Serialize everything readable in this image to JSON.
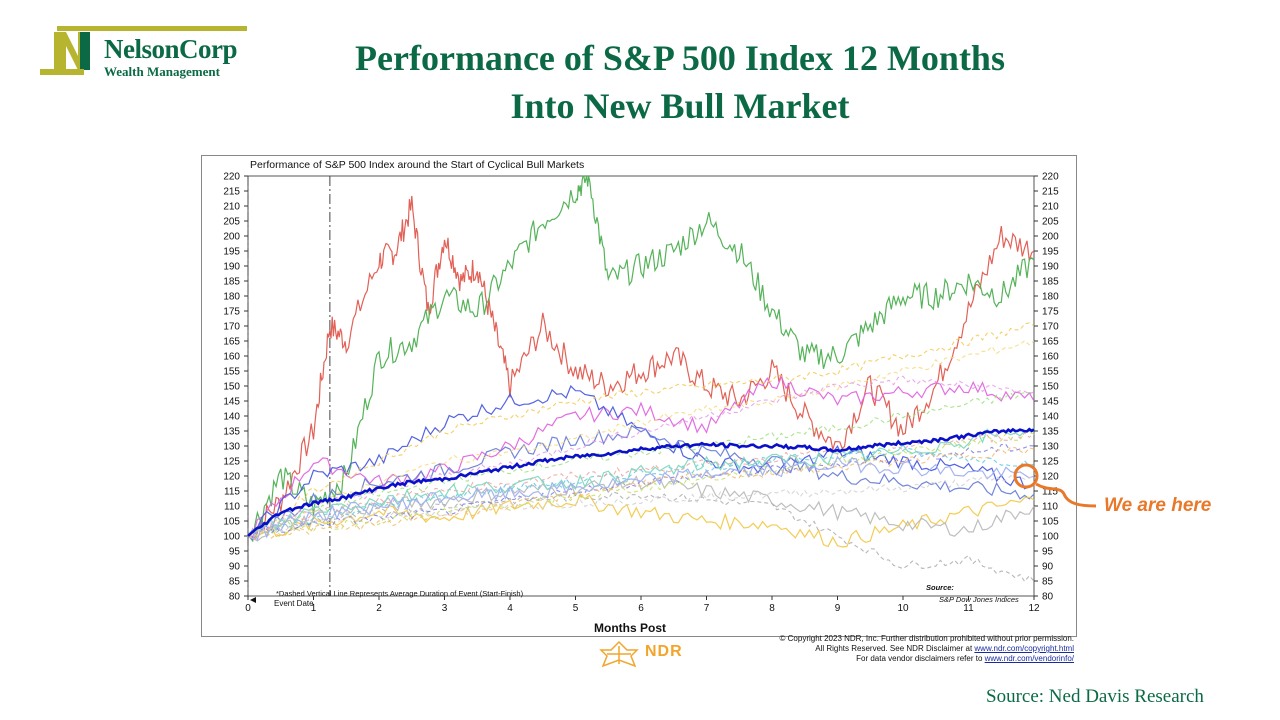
{
  "logo": {
    "brand": "NelsonCorp",
    "subtitle": "Wealth Management"
  },
  "title": {
    "line1": "Performance of S&P 500 Index 12 Months",
    "line2": "Into New Bull Market"
  },
  "annotation": "We are here",
  "source_footer": "Source:  Ned Davis  Research",
  "copyright": {
    "line1": "© Copyright 2023 NDR, Inc. Further distribution prohibited without prior permission.",
    "line2": "All Rights Reserved. See NDR Disclaimer at ",
    "line2_link": "www.ndr.com/copyright.html",
    "line3": "For data vendor disclaimers refer to ",
    "line3_link": "www.ndr.com/vendorinfo/"
  },
  "ndr_logo": "NDR",
  "colors": {
    "brand_green": "#0b6a45",
    "logo_olive": "#b7b530",
    "annotation_orange": "#e8782a",
    "average_line": "#0a10c8"
  },
  "chart_data": {
    "type": "line",
    "title": "Performance of S&P 500 Index around the Start of Cyclical Bull Markets",
    "xlabel": "Months Post",
    "ylabel": "",
    "xlim": [
      0,
      12
    ],
    "ylim": [
      80,
      220
    ],
    "x_ticks": [
      0,
      1,
      2,
      3,
      4,
      5,
      6,
      7,
      8,
      9,
      10,
      11,
      12
    ],
    "y_ticks": [
      80,
      85,
      90,
      95,
      100,
      105,
      110,
      115,
      120,
      125,
      130,
      135,
      140,
      145,
      150,
      155,
      160,
      165,
      170,
      175,
      180,
      185,
      190,
      195,
      200,
      205,
      210,
      215,
      220
    ],
    "grid": false,
    "legend": "none",
    "notes": {
      "dashed_line": "*Dashed Vertical Line Represents Average Duration of Event (Start-Finish)",
      "event_date": "Event Date",
      "source_label": "Source:",
      "source_name": "S&P Dow Jones Indices"
    },
    "vertical_lines": [
      0,
      1.25
    ],
    "highlight": {
      "x": 12,
      "y": 118,
      "label": "We are here"
    },
    "average": {
      "name": "Average",
      "x": [
        0,
        0.5,
        1,
        1.5,
        2,
        2.5,
        3,
        3.5,
        4,
        4.5,
        5,
        5.5,
        6,
        6.5,
        7,
        7.5,
        8,
        8.5,
        9,
        9.5,
        10,
        10.5,
        11,
        11.5,
        12
      ],
      "values": [
        100,
        108,
        111,
        113,
        116,
        118,
        119,
        121,
        123,
        125,
        126.5,
        127.5,
        129,
        130,
        130.5,
        130,
        130,
        129.5,
        128.5,
        130,
        131,
        132,
        133.5,
        135,
        135.5
      ]
    },
    "series": [
      {
        "color": "#e0594e",
        "dash": false,
        "x": [
          0,
          0.5,
          1,
          1.25,
          1.5,
          2,
          2.25,
          2.5,
          2.75,
          3,
          3.25,
          3.5,
          3.75,
          4,
          4.5,
          5,
          5.5,
          6,
          6.5,
          7,
          7.5,
          8,
          8.5,
          9,
          9.5,
          10,
          10.5,
          11,
          11.5,
          12
        ],
        "values": [
          100,
          112,
          135,
          170,
          165,
          192,
          195,
          210,
          175,
          200,
          185,
          190,
          170,
          150,
          170,
          155,
          150,
          155,
          160,
          150,
          145,
          155,
          140,
          130,
          150,
          135,
          150,
          175,
          200,
          195
        ]
      },
      {
        "color": "#4caf50",
        "dash": false,
        "x": [
          0,
          0.5,
          1,
          1.5,
          2,
          2.5,
          3,
          3.5,
          4,
          4.5,
          5,
          5.2,
          5.5,
          6,
          6.5,
          7,
          7.5,
          8,
          8.5,
          9,
          9.5,
          10,
          10.5,
          11,
          11.5,
          12
        ],
        "values": [
          100,
          120,
          110,
          120,
          160,
          165,
          180,
          175,
          190,
          205,
          215,
          220,
          185,
          190,
          195,
          205,
          195,
          175,
          160,
          160,
          170,
          180,
          180,
          185,
          180,
          192
        ]
      },
      {
        "color": "#e066e0",
        "dash": false,
        "x": [
          0,
          1,
          2,
          3,
          4,
          5,
          6,
          7,
          8,
          9,
          10,
          11,
          12
        ],
        "values": [
          100,
          125,
          118,
          122,
          130,
          140,
          142,
          136,
          152,
          145,
          148,
          150,
          145
        ]
      },
      {
        "color": "#4a5be0",
        "dash": false,
        "x": [
          0,
          1,
          2,
          3,
          4,
          5,
          6,
          7,
          8,
          9,
          10,
          11,
          12
        ],
        "values": [
          100,
          120,
          125,
          138,
          145,
          148,
          135,
          125,
          122,
          128,
          125,
          122,
          117
        ]
      },
      {
        "color": "#6a7ed8",
        "dash": false,
        "x": [
          0,
          1,
          2,
          3,
          4,
          5,
          6,
          7,
          8,
          9,
          10,
          11,
          12
        ],
        "values": [
          100,
          112,
          118,
          122,
          128,
          132,
          135,
          128,
          125,
          120,
          118,
          116,
          114
        ]
      },
      {
        "color": "#f2c94c",
        "dash": false,
        "x": [
          0,
          1,
          2,
          3,
          4,
          5,
          6,
          7,
          8,
          9,
          10,
          11,
          12
        ],
        "values": [
          100,
          104,
          108,
          106,
          110,
          112,
          108,
          105,
          104,
          98,
          103,
          108,
          112
        ]
      },
      {
        "color": "#bbbbbb",
        "dash": false,
        "x": [
          0,
          1,
          2,
          3,
          4,
          5,
          6,
          7,
          8,
          9,
          10,
          11,
          12
        ],
        "values": [
          100,
          106,
          110,
          112,
          115,
          116,
          118,
          115,
          112,
          108,
          104,
          102,
          110
        ]
      },
      {
        "color": "#aaaaaa",
        "dash": true,
        "x": [
          0,
          1,
          2,
          3,
          4,
          5,
          6,
          7,
          8,
          9,
          10,
          11,
          12
        ],
        "values": [
          100,
          105,
          108,
          110,
          112,
          113,
          114,
          112,
          110,
          100,
          90,
          92,
          85
        ]
      },
      {
        "color": "#f2c94c",
        "dash": true,
        "x": [
          0,
          1,
          2,
          3,
          4,
          5,
          6,
          7,
          8,
          9,
          10,
          11,
          12
        ],
        "values": [
          100,
          115,
          125,
          135,
          140,
          145,
          148,
          150,
          152,
          155,
          160,
          165,
          170
        ]
      },
      {
        "color": "#f5d97a",
        "dash": true,
        "x": [
          0,
          1,
          2,
          3,
          4,
          5,
          6,
          7,
          8,
          9,
          10,
          11,
          12
        ],
        "values": [
          100,
          110,
          118,
          125,
          128,
          132,
          138,
          142,
          145,
          150,
          155,
          160,
          165
        ]
      },
      {
        "color": "#9ae07a",
        "dash": true,
        "x": [
          0,
          1,
          2,
          3,
          4,
          5,
          6,
          7,
          8,
          9,
          10,
          11,
          12
        ],
        "values": [
          100,
          108,
          114,
          118,
          122,
          125,
          128,
          130,
          133,
          136,
          140,
          144,
          148
        ]
      },
      {
        "color": "#5bc8e0",
        "dash": true,
        "x": [
          0,
          1,
          2,
          3,
          4,
          5,
          6,
          7,
          8,
          9,
          10,
          11,
          12
        ],
        "values": [
          100,
          106,
          110,
          113,
          116,
          118,
          121,
          123,
          125,
          127,
          128,
          126,
          124
        ]
      },
      {
        "color": "#e69ae6",
        "dash": true,
        "x": [
          0,
          1,
          2,
          3,
          4,
          5,
          6,
          7,
          8,
          9,
          10,
          11,
          12
        ],
        "values": [
          100,
          110,
          115,
          120,
          124,
          130,
          135,
          140,
          145,
          150,
          152,
          150,
          148
        ]
      },
      {
        "color": "#7b7be0",
        "dash": true,
        "x": [
          0,
          1,
          2,
          3,
          4,
          5,
          6,
          7,
          8,
          9,
          10,
          11,
          12
        ],
        "values": [
          100,
          104,
          106,
          108,
          112,
          115,
          118,
          120,
          122,
          124,
          126,
          128,
          130
        ]
      },
      {
        "color": "#f0a0a0",
        "dash": true,
        "x": [
          0,
          1,
          2,
          3,
          4,
          5,
          6,
          7,
          8,
          9,
          10,
          11,
          12
        ],
        "values": [
          100,
          108,
          112,
          115,
          118,
          120,
          122,
          124,
          126,
          128,
          130,
          132,
          134
        ]
      },
      {
        "color": "#c0e060",
        "dash": true,
        "x": [
          0,
          1,
          2,
          3,
          4,
          5,
          6,
          7,
          8,
          9,
          10,
          11,
          12
        ],
        "values": [
          100,
          103,
          105,
          108,
          110,
          113,
          116,
          119,
          122,
          125,
          128,
          131,
          134
        ]
      },
      {
        "color": "#f5b86a",
        "dash": true,
        "x": [
          0,
          1,
          2,
          3,
          4,
          5,
          6,
          7,
          8,
          9,
          10,
          11,
          12
        ],
        "values": [
          100,
          102,
          104,
          107,
          110,
          114,
          118,
          120,
          121,
          123,
          125,
          127,
          129
        ]
      },
      {
        "color": "#80d8c0",
        "dash": false,
        "x": [
          0,
          1,
          2,
          3,
          4,
          5,
          6,
          7,
          8,
          9,
          10,
          11,
          12
        ],
        "values": [
          100,
          109,
          112,
          115,
          117,
          118,
          121,
          124,
          125,
          126,
          128,
          132,
          136
        ]
      },
      {
        "color": "#a0b0f0",
        "dash": false,
        "x": [
          0,
          1,
          2,
          3,
          4,
          5,
          6,
          7,
          8,
          9,
          10,
          11,
          12
        ],
        "values": [
          100,
          107,
          110,
          113,
          114,
          116,
          118,
          121,
          122,
          124,
          123,
          121,
          120
        ]
      },
      {
        "color": "#d0d0d0",
        "dash": true,
        "x": [
          0,
          1,
          2,
          3,
          4,
          5,
          6,
          7,
          8,
          9,
          10,
          11,
          12
        ],
        "values": [
          100,
          105,
          107,
          108,
          110,
          111,
          112,
          113,
          114,
          115,
          116,
          118,
          120
        ]
      }
    ]
  }
}
